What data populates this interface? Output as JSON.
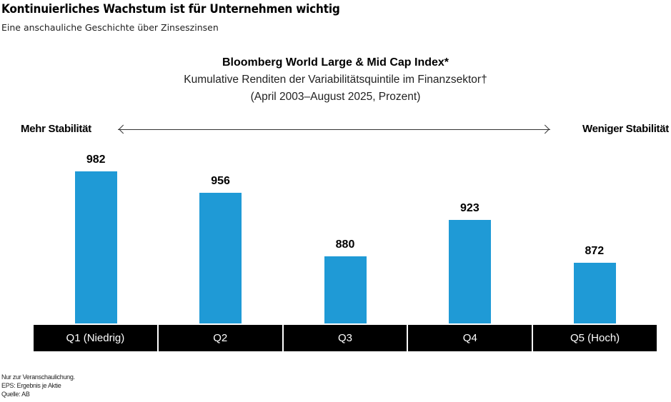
{
  "header": {
    "title": "Kontinuierliches Wachstum ist für Unternehmen wichtig",
    "subtitle": "Eine anschauliche Geschichte über Zinseszinsen"
  },
  "chart": {
    "title": "Bloomberg World Large & Mid Cap Index*",
    "subtitle_line1": "Kumulative Renditen der Variabilitätsquintile im Finanzsektor†",
    "subtitle_line2": "(April 2003–August 2025, Prozent)",
    "axis_left_label": "Mehr Stabilität",
    "axis_right_label": "Weniger Stabilität",
    "bar_color": "#1f9ad6",
    "category_bg": "#000000"
  },
  "footnotes": {
    "line1": "Nur zur Veranschaulichung.",
    "line2": "EPS: Ergebnis je Aktie",
    "line3": "Quelle: AB"
  },
  "chart_data": {
    "type": "bar",
    "title": "Bloomberg World Large & Mid Cap Index*",
    "subtitle": "Kumulative Renditen der Variabilitätsquintile im Finanzsektor† (April 2003–August 2025, Prozent)",
    "categories": [
      "Q1 (Niedrig)",
      "Q2",
      "Q3",
      "Q4",
      "Q5 (Hoch)"
    ],
    "values": [
      982,
      956,
      880,
      923,
      872
    ],
    "xlabel": "",
    "ylabel": "Prozent",
    "ylim": [
      799,
      1016
    ],
    "grid": false,
    "legend": null,
    "annotations": [
      "Mehr Stabilität ←",
      "→ Weniger Stabilität"
    ],
    "data_labels": true
  }
}
